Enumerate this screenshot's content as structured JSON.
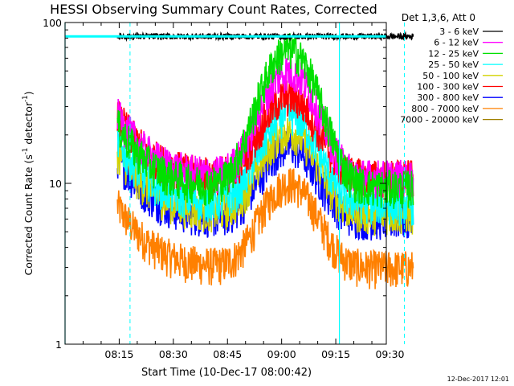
{
  "chart_data": {
    "type": "line",
    "title": "HESSI Observing Summary Count Rates, Corrected",
    "xlabel": "Start Time (10-Dec-17 08:00:42)",
    "ylabel": "Corrected Count Rate (s",
    "ylabel_sup1": "-1",
    "ylabel_mid": " detector",
    "ylabel_sup2": "-1",
    "ylabel_end": ")",
    "yscale": "log",
    "ylim": [
      1,
      100
    ],
    "xlim_minutes": [
      0,
      80
    ],
    "xticks": [
      {
        "m": 15,
        "label": "08:15"
      },
      {
        "m": 30,
        "label": "08:30"
      },
      {
        "m": 45,
        "label": "08:45"
      },
      {
        "m": 60,
        "label": "09:00"
      },
      {
        "m": 75,
        "label": "09:15"
      },
      {
        "m": 90,
        "label": "09:30"
      }
    ],
    "yticks": [
      {
        "v": 1,
        "label": "1"
      },
      {
        "v": 10,
        "label": "10"
      },
      {
        "v": 100,
        "label": "100"
      }
    ],
    "legend_header": "Det 1,3,6, Att 0",
    "legend_position": "right",
    "footer_date": "12-Dec-2017 12:01",
    "data_range_minutes": [
      14.5,
      96.5
    ],
    "vlines_solid_cyan_minutes": [
      0,
      76
    ],
    "vlines_dashed_cyan_minutes": [
      18,
      94
    ],
    "saturation_level": 82,
    "series": [
      {
        "name": "3 - 6 keV",
        "color": "#000000",
        "base": 82,
        "peak": 0
      },
      {
        "name": "6 - 12 keV",
        "color": "#ff00ff",
        "base": 11,
        "peak": 50
      },
      {
        "name": "12 - 25 keV",
        "color": "#00e000",
        "base": 9.5,
        "peak": 68
      },
      {
        "name": "25 - 50 keV",
        "color": "#00ffff",
        "base": 7.5,
        "peak": 27
      },
      {
        "name": "50 - 100 keV",
        "color": "#d2d200",
        "base": 6.5,
        "peak": 21
      },
      {
        "name": "100 - 300 keV",
        "color": "#ff0000",
        "base": 11,
        "peak": 35
      },
      {
        "name": "300 - 800 keV",
        "color": "#0000ff",
        "base": 6,
        "peak": 17
      },
      {
        "name": "800 - 7000 keV",
        "color": "#ff8000",
        "base": 3,
        "peak": 10
      },
      {
        "name": "7000 - 20000 keV",
        "color": "#a08000",
        "base": 0,
        "peak": 0
      }
    ]
  }
}
